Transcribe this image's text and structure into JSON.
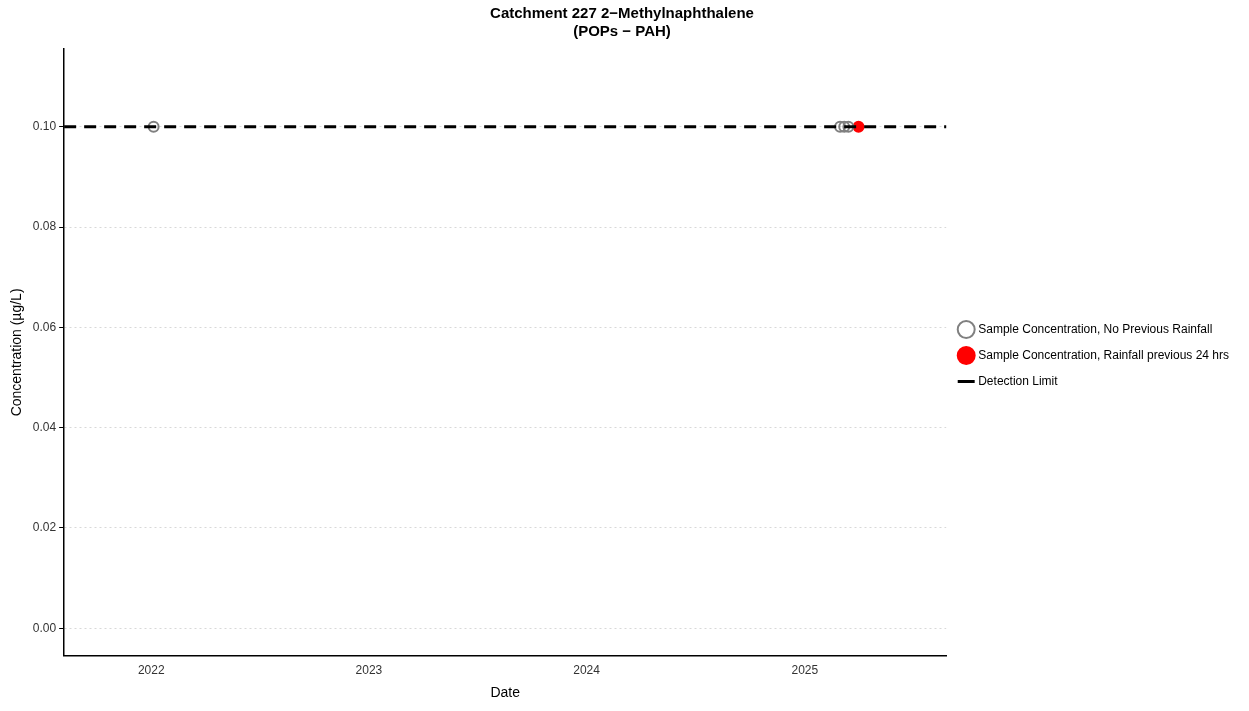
{
  "chart_data": {
    "type": "scatter",
    "title": "Catchment 227 2−Methylnaphthalene\n(POPs − PAH)",
    "xlabel": "Date",
    "ylabel": "Concentration (µg/L)",
    "series": [
      {
        "name": "Sample Concentration, No Previous Rainfall",
        "color": "#808080",
        "marker": "circle",
        "x": [
          "2022-01-05",
          "2025-03-01",
          "2025-03-08",
          "2025-03-15"
        ],
        "values": [
          0.1,
          0.1,
          0.1,
          0.1
        ]
      },
      {
        "name": "Sample Concentration, Rainfall previous 24 hrs",
        "color": "#ff0000",
        "x": [
          "2025-04-01"
        ],
        "values": [
          0.1
        ]
      }
    ],
    "ref_lines": [
      {
        "axis": "y",
        "value": 0.1,
        "label": "Detection Limit",
        "color": "#000000",
        "line_style": "dashed"
      }
    ],
    "xlim": [
      "2021-08-08",
      "2025-08-26"
    ],
    "xticks": [
      {
        "value": "2022-01-01",
        "label": "2022"
      },
      {
        "value": "2023-01-01",
        "label": "2023"
      },
      {
        "value": "2024-01-01",
        "label": "2024"
      },
      {
        "value": "2025-01-01",
        "label": "2025"
      }
    ],
    "ylim": [
      -0.0055,
      0.1155
    ],
    "yticks": [
      {
        "value": 0,
        "label": "0.00"
      },
      {
        "value": 0.02,
        "label": "0.02"
      },
      {
        "value": 0.04,
        "label": "0.04"
      },
      {
        "value": 0.06,
        "label": "0.06"
      },
      {
        "value": 0.08,
        "label": "0.08"
      },
      {
        "value": 0.1,
        "label": "0.10"
      }
    ],
    "grid": "y",
    "legend": "right"
  }
}
